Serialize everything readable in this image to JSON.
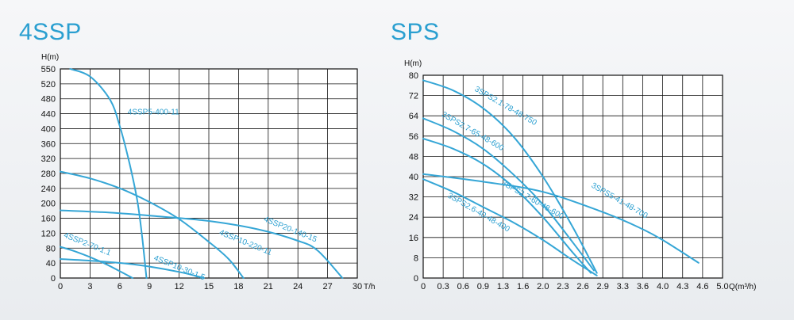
{
  "chart_data": [
    {
      "type": "line",
      "title": "4SSP",
      "ylabel": "H(m)",
      "xlabel": "T/h",
      "xlim": [
        0,
        30
      ],
      "ylim": [
        0,
        550
      ],
      "x_ticks": [
        "0",
        "3",
        "6",
        "9",
        "12",
        "15",
        "18",
        "21",
        "24",
        "27",
        "30"
      ],
      "y_ticks": [
        "0",
        "40",
        "80",
        "120",
        "160",
        "200",
        "240",
        "280",
        "320",
        "360",
        "400",
        "440",
        "480",
        "520",
        "550"
      ],
      "series": [
        {
          "name": "4SSP5-400-11",
          "x": [
            1.0,
            3.0,
            5.0,
            6.0,
            7.0,
            7.8,
            8.3,
            8.7
          ],
          "y": [
            550,
            530,
            470,
            400,
            300,
            200,
            100,
            0
          ],
          "label_at": [
            6.8,
            430
          ]
        },
        {
          "name": "4SSP20-140-15",
          "x": [
            0,
            5,
            10,
            15,
            20,
            24,
            26,
            28.5
          ],
          "y": [
            178,
            172,
            162,
            150,
            128,
            98,
            72,
            0
          ],
          "label_at": [
            20.5,
            150
          ]
        },
        {
          "name": "4SSP10-220-11",
          "x": [
            0,
            3,
            6,
            9,
            12,
            15,
            17,
            18.5
          ],
          "y": [
            280,
            262,
            236,
            200,
            155,
            95,
            50,
            0
          ],
          "label_at": [
            16,
            115
          ]
        },
        {
          "name": "4SSP2-70-1.1",
          "x": [
            0,
            1.5,
            3,
            4.5,
            6,
            7.3
          ],
          "y": [
            82,
            70,
            55,
            38,
            18,
            0
          ],
          "label_at": [
            0.3,
            108
          ]
        },
        {
          "name": "4SSP10-30-1.5",
          "x": [
            0,
            4,
            8,
            12,
            14.5
          ],
          "y": [
            50,
            44,
            34,
            16,
            0
          ],
          "label_at": [
            9.4,
            48
          ]
        }
      ]
    },
    {
      "type": "line",
      "title": "SPS",
      "ylabel": "H(m)",
      "xlabel": "Q(m³/h)",
      "xlim": [
        0,
        5.0
      ],
      "ylim": [
        0,
        80
      ],
      "x_ticks": [
        "0",
        "0.3",
        "0.6",
        "0.9",
        "1.3",
        "1.6",
        "2.0",
        "2.3",
        "2.6",
        "2.9",
        "3.3",
        "3.6",
        "4.0",
        "4.3",
        "4.6",
        "5.0"
      ],
      "y_ticks": [
        "0",
        "8",
        "16",
        "24",
        "32",
        "40",
        "48",
        "56",
        "64",
        "72",
        "80"
      ],
      "series": [
        {
          "name": "3SPS2.1-78-48-750",
          "x": [
            0,
            0.5,
            1.0,
            1.5,
            2.0,
            2.5,
            2.9
          ],
          "y": [
            78,
            74,
            67,
            56,
            40,
            20,
            2
          ],
          "label_at": [
            0.85,
            74
          ]
        },
        {
          "name": "3SPS2.7-65-48-600",
          "x": [
            0,
            0.5,
            1.0,
            1.5,
            2.0,
            2.5,
            2.85
          ],
          "y": [
            63,
            58,
            51,
            41,
            29,
            14,
            3
          ],
          "label_at": [
            0.3,
            64
          ]
        },
        {
          "name": "3SPS2.7-60-48-600",
          "x": [
            0,
            0.5,
            1.0,
            1.5,
            2.0,
            2.5,
            2.8
          ],
          "y": [
            55,
            51,
            45,
            36,
            24,
            10,
            2
          ],
          "label_at": [
            1.3,
            37
          ]
        },
        {
          "name": "3SPS5-41-48-700",
          "x": [
            0,
            1.0,
            2.0,
            3.0,
            3.6,
            4.0,
            4.6
          ],
          "y": [
            41,
            38,
            34,
            26,
            20,
            15,
            6
          ],
          "label_at": [
            2.8,
            36
          ]
        },
        {
          "name": "3SPS2.6-40-48-400",
          "x": [
            0,
            0.5,
            1.0,
            1.5,
            2.0,
            2.5,
            2.9
          ],
          "y": [
            39,
            34,
            28,
            22,
            15,
            7,
            1
          ],
          "label_at": [
            0.4,
            32
          ]
        }
      ]
    }
  ]
}
